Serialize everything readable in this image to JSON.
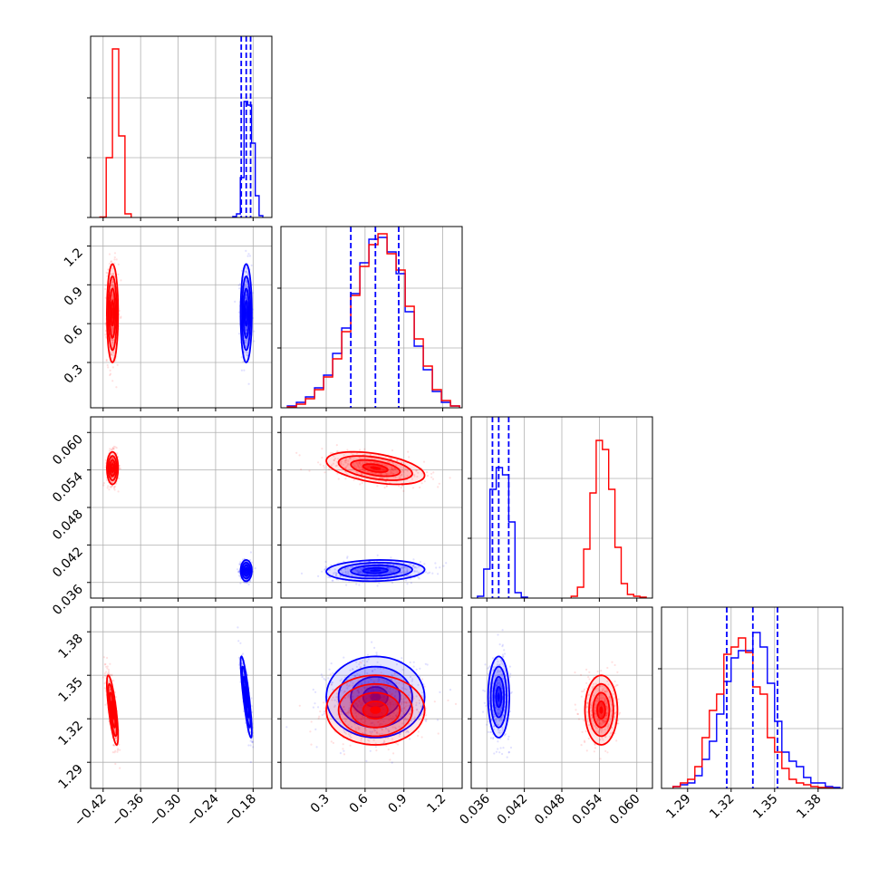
{
  "chart_data": {
    "type": "corner",
    "title": "",
    "params": [
      {
        "range": [
          -0.44,
          -0.15
        ],
        "ticks": [
          -0.42,
          -0.36,
          -0.3,
          -0.24,
          -0.18
        ],
        "tick_labels": [
          "−0.42",
          "−0.36",
          "−0.30",
          "−0.24",
          "−0.18"
        ]
      },
      {
        "range": [
          -0.05,
          1.35
        ],
        "ticks": [
          0.3,
          0.6,
          0.9,
          1.2
        ],
        "tick_labels": [
          "0.3",
          "0.6",
          "0.9",
          "1.2"
        ]
      },
      {
        "range": [
          0.0335,
          0.0625
        ],
        "ticks": [
          0.036,
          0.042,
          0.048,
          0.054,
          0.06
        ],
        "tick_labels": [
          "0.036",
          "0.042",
          "0.048",
          "0.054",
          "0.060"
        ]
      },
      {
        "range": [
          1.272,
          1.397
        ],
        "ticks": [
          1.29,
          1.32,
          1.35,
          1.38
        ],
        "tick_labels": [
          "1.29",
          "1.32",
          "1.35",
          "1.38"
        ]
      }
    ],
    "series": [
      {
        "color": "#ff0000",
        "means": [
          -0.405,
          0.68,
          0.0543,
          1.326
        ],
        "sigmas": [
          0.0045,
          0.19,
          0.0013,
          0.012
        ],
        "correlations": {
          "0-3": -0.75,
          "1-2": -0.45
        },
        "hist": [
          {
            "edges": [
              -0.425,
              -0.415,
              -0.405,
              -0.395,
              -0.385,
              -0.375
            ],
            "counts": [
              0.003,
              0.33,
              0.93,
              0.45,
              0.02
            ]
          },
          {
            "edges": [
              0.0,
              0.07,
              0.14,
              0.21,
              0.28,
              0.35,
              0.42,
              0.49,
              0.56,
              0.63,
              0.7,
              0.77,
              0.84,
              0.91,
              0.98,
              1.05,
              1.12,
              1.19,
              1.26,
              1.33
            ],
            "counts": [
              0.005,
              0.02,
              0.05,
              0.1,
              0.17,
              0.27,
              0.42,
              0.62,
              0.78,
              0.9,
              0.96,
              0.85,
              0.76,
              0.56,
              0.38,
              0.23,
              0.1,
              0.04,
              0.01
            ]
          },
          {
            "edges": [
              0.0495,
              0.0505,
              0.0515,
              0.0525,
              0.0535,
              0.0545,
              0.0555,
              0.0565,
              0.0575,
              0.0585,
              0.0595,
              0.0605,
              0.0615
            ],
            "counts": [
              0.01,
              0.06,
              0.27,
              0.58,
              0.87,
              0.82,
              0.6,
              0.28,
              0.08,
              0.02,
              0.01,
              0.005
            ]
          },
          {
            "edges": [
              1.28,
              1.285,
              1.29,
              1.295,
              1.3,
              1.305,
              1.31,
              1.315,
              1.32,
              1.325,
              1.33,
              1.335,
              1.34,
              1.345,
              1.35,
              1.355,
              1.36,
              1.365,
              1.37,
              1.375,
              1.38,
              1.385,
              1.39
            ],
            "counts": [
              0.01,
              0.03,
              0.05,
              0.12,
              0.28,
              0.43,
              0.52,
              0.74,
              0.78,
              0.83,
              0.75,
              0.56,
              0.52,
              0.28,
              0.2,
              0.11,
              0.05,
              0.03,
              0.02,
              0.01,
              0.005,
              0.003
            ]
          }
        ]
      },
      {
        "color": "#0000ff",
        "means": [
          -0.191,
          0.68,
          0.0379,
          1.335
        ],
        "sigmas": [
          0.0045,
          0.19,
          0.00085,
          0.014
        ],
        "correlations": {
          "0-3": -0.85,
          "1-2": 0.1
        },
        "quantiles": [
          [
            -0.199,
            -0.191,
            -0.184
          ],
          [
            0.49,
            0.68,
            0.86
          ],
          [
            0.0369,
            0.0379,
            0.0395
          ],
          [
            1.317,
            1.335,
            1.352
          ]
        ],
        "hist": [
          {
            "edges": [
              -0.2125,
              -0.2065,
              -0.2005,
              -0.1945,
              -0.1885,
              -0.1825,
              -0.1765,
              -0.1705,
              -0.1645
            ],
            "counts": [
              0.005,
              0.02,
              0.22,
              0.64,
              0.62,
              0.41,
              0.12,
              0.01
            ]
          },
          {
            "edges": [
              0.0,
              0.07,
              0.14,
              0.21,
              0.28,
              0.35,
              0.42,
              0.49,
              0.56,
              0.63,
              0.7,
              0.77,
              0.84,
              0.91,
              0.98,
              1.05,
              1.12,
              1.19,
              1.26,
              1.33
            ],
            "counts": [
              0.01,
              0.03,
              0.06,
              0.11,
              0.18,
              0.3,
              0.44,
              0.63,
              0.8,
              0.93,
              0.94,
              0.86,
              0.74,
              0.53,
              0.34,
              0.21,
              0.09,
              0.03,
              0.01
            ]
          },
          {
            "edges": [
              0.0345,
              0.0355,
              0.0365,
              0.0375,
              0.0385,
              0.0395,
              0.0405,
              0.0415,
              0.0425
            ],
            "counts": [
              0.01,
              0.16,
              0.6,
              0.72,
              0.68,
              0.42,
              0.03,
              0.005
            ]
          },
          {
            "edges": [
              1.28,
              1.285,
              1.29,
              1.295,
              1.3,
              1.305,
              1.31,
              1.315,
              1.32,
              1.325,
              1.33,
              1.335,
              1.34,
              1.345,
              1.35,
              1.355,
              1.36,
              1.365,
              1.37,
              1.375,
              1.38,
              1.385,
              1.39,
              1.395
            ],
            "counts": [
              0.01,
              0.02,
              0.03,
              0.07,
              0.16,
              0.26,
              0.41,
              0.59,
              0.72,
              0.76,
              0.76,
              0.86,
              0.78,
              0.58,
              0.37,
              0.2,
              0.15,
              0.12,
              0.06,
              0.03,
              0.03,
              0.01,
              0.005
            ]
          }
        ]
      }
    ],
    "grid": true,
    "contour_levels_sigma": [
      0.5,
      1.0,
      1.5,
      2.0
    ]
  }
}
